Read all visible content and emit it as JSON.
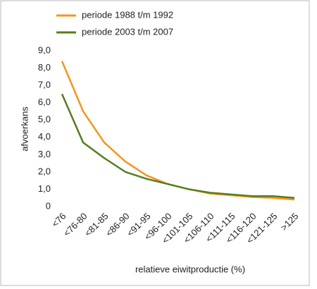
{
  "chart_data": {
    "type": "line",
    "xlabel": "relatieve eiwitproductie (%)",
    "ylabel": "afvoerkans",
    "categories": [
      "<76",
      "<76-80",
      "<81-85",
      "<86-90",
      "<91-95",
      "<96-100",
      "<101-105",
      "<106-110",
      "<111-115",
      "<116-120",
      "<121-125",
      ">125"
    ],
    "series": [
      {
        "name": "periode 1988 t/m 1992",
        "color": "#f7941d",
        "values": [
          8.4,
          5.5,
          3.7,
          2.6,
          1.8,
          1.3,
          1.0,
          0.75,
          0.65,
          0.55,
          0.5,
          0.4
        ]
      },
      {
        "name": "periode 2003 t/m 2007",
        "color": "#567d1e",
        "values": [
          6.5,
          3.7,
          2.8,
          2.0,
          1.6,
          1.3,
          1.0,
          0.8,
          0.7,
          0.6,
          0.6,
          0.5
        ]
      }
    ],
    "ylim": [
      0,
      9
    ],
    "yticks": [
      0,
      {
        "value": 1,
        "label": "1,0"
      },
      {
        "value": 2,
        "label": "2,0"
      },
      {
        "value": 3,
        "label": "3,0"
      },
      {
        "value": 4,
        "label": "4,0"
      },
      {
        "value": 5,
        "label": "5,0"
      },
      {
        "value": 6,
        "label": "6,0"
      },
      {
        "value": 7,
        "label": "7,0"
      },
      {
        "value": 8,
        "label": "8,0"
      },
      {
        "value": 9,
        "label": "9,0"
      }
    ],
    "legend": "top-left"
  }
}
